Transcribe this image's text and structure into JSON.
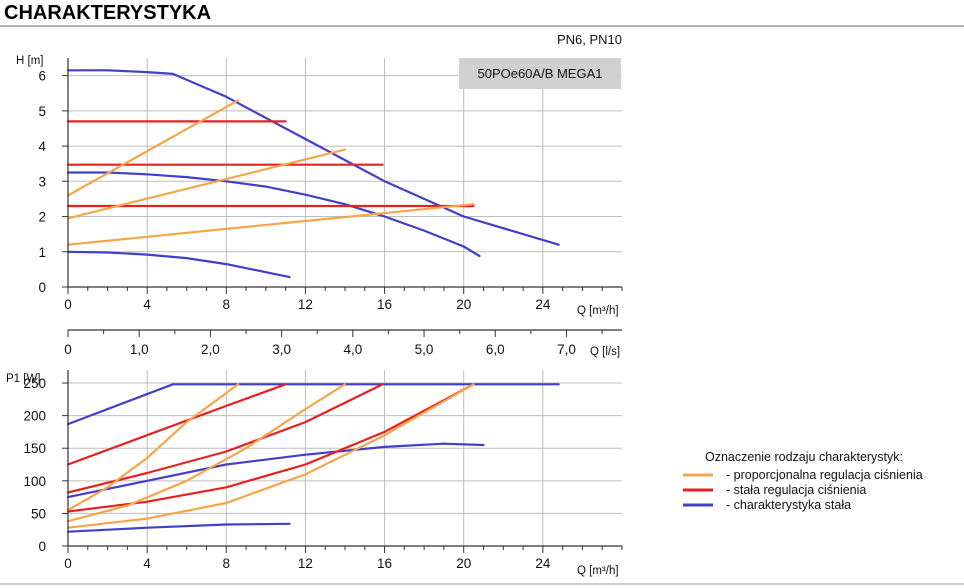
{
  "header": {
    "title": "CHARAKTERYSTYKA",
    "pressure_class": "PN6, PN10",
    "model": "50POe60A/B MEGA1"
  },
  "legend": {
    "title": "Oznaczenie rodzaju charakterystyk:",
    "items": [
      {
        "label": "- proporcjonalna regulacja ciśnienia",
        "color": "#f7a54a"
      },
      {
        "label": "- stała regulacja ciśnienia",
        "color": "#e8201f"
      },
      {
        "label": "- charakterystyka stała",
        "color": "#4040c8"
      }
    ]
  },
  "colors": {
    "proportional": "#f7a54a",
    "constant_pressure": "#e8201f",
    "fixed_curve": "#4040c8"
  },
  "chart_data": [
    {
      "id": "head",
      "type": "line",
      "ylabel": "H [m]",
      "xlabel": "Q [m³/h]",
      "xlim": [
        0,
        28
      ],
      "ylim": [
        0,
        6.5
      ],
      "xticks": [
        0,
        4,
        8,
        12,
        16,
        20,
        24
      ],
      "yticks": [
        0,
        1,
        2,
        3,
        4,
        5,
        6
      ],
      "grid": true,
      "series": [
        {
          "name": "charakterystyka stała max",
          "kind": "fixed",
          "x": [
            0,
            2,
            4,
            5.3,
            8,
            12,
            16,
            20,
            24.8
          ],
          "y": [
            6.15,
            6.15,
            6.1,
            6.05,
            5.4,
            4.2,
            3.0,
            2.0,
            1.2
          ]
        },
        {
          "name": "charakterystyka stała mid",
          "kind": "fixed",
          "x": [
            0,
            2,
            4,
            6,
            8,
            10,
            12,
            14,
            16,
            18,
            20,
            20.8
          ],
          "y": [
            3.25,
            3.25,
            3.2,
            3.12,
            3.0,
            2.85,
            2.62,
            2.35,
            2.0,
            1.6,
            1.15,
            0.88
          ]
        },
        {
          "name": "charakterystyka stała min",
          "kind": "fixed",
          "x": [
            0,
            2,
            4,
            6,
            8,
            10,
            11.2
          ],
          "y": [
            1.0,
            0.98,
            0.92,
            0.82,
            0.65,
            0.42,
            0.28
          ]
        },
        {
          "name": "stała regulacja 4.7 m",
          "kind": "constant",
          "x": [
            0,
            11
          ],
          "y": [
            4.7,
            4.7
          ]
        },
        {
          "name": "stała regulacja 3.5 m",
          "kind": "constant",
          "x": [
            0,
            15.9
          ],
          "y": [
            3.47,
            3.47
          ]
        },
        {
          "name": "stała regulacja 2.3 m",
          "kind": "constant",
          "x": [
            0,
            20.5
          ],
          "y": [
            2.3,
            2.3
          ]
        },
        {
          "name": "proporcjonalna 1",
          "kind": "proportional",
          "x": [
            0,
            8.6
          ],
          "y": [
            2.6,
            5.3
          ]
        },
        {
          "name": "proporcjonalna 2",
          "kind": "proportional",
          "x": [
            0,
            14
          ],
          "y": [
            1.95,
            3.9
          ]
        },
        {
          "name": "proporcjonalna 3",
          "kind": "proportional",
          "x": [
            0,
            20.5
          ],
          "y": [
            1.2,
            2.35
          ]
        }
      ]
    },
    {
      "id": "flow-ls",
      "type": "axis",
      "xlabel": "Q [l/s]",
      "xlim": [
        0,
        7.78
      ],
      "ticks": [
        0,
        1.0,
        2.0,
        3.0,
        4.0,
        5.0,
        6.0,
        7.0
      ],
      "tick_labels": [
        "0",
        "1,0",
        "2,0",
        "3,0",
        "4,0",
        "5,0",
        "6,0",
        "7,0"
      ]
    },
    {
      "id": "power",
      "type": "line",
      "ylabel": "P1 [W]",
      "xlabel": "Q [m³/h]",
      "xlim": [
        0,
        28
      ],
      "ylim": [
        0,
        270
      ],
      "xticks": [
        0,
        4,
        8,
        12,
        16,
        20,
        24
      ],
      "yticks": [
        0,
        50,
        100,
        150,
        200,
        250
      ],
      "grid": true,
      "series": [
        {
          "name": "max power line",
          "kind": "fixed",
          "x": [
            0,
            5.3,
            24.8
          ],
          "y": [
            187,
            248,
            248
          ]
        },
        {
          "name": "charakterystyka stała mid",
          "kind": "fixed",
          "x": [
            0,
            4,
            8,
            12,
            16,
            19,
            21
          ],
          "y": [
            75,
            100,
            125,
            140,
            152,
            157,
            155
          ]
        },
        {
          "name": "charakterystyka stała min",
          "kind": "fixed",
          "x": [
            0,
            4,
            8,
            11.2
          ],
          "y": [
            22,
            28,
            33,
            34
          ]
        },
        {
          "name": "stała regulacja 4.7 m",
          "kind": "constant",
          "x": [
            0,
            4,
            8,
            11
          ],
          "y": [
            125,
            170,
            215,
            248
          ]
        },
        {
          "name": "stała regulacja 3.5 m",
          "kind": "constant",
          "x": [
            0,
            4,
            8,
            12,
            15.9
          ],
          "y": [
            82,
            112,
            145,
            190,
            248
          ]
        },
        {
          "name": "stała regulacja 2.3 m",
          "kind": "constant",
          "x": [
            0,
            4,
            8,
            12,
            16,
            20.5
          ],
          "y": [
            53,
            68,
            90,
            125,
            175,
            248
          ]
        },
        {
          "name": "proporcjonalna 1",
          "kind": "proportional",
          "x": [
            0,
            2,
            4,
            6,
            8.6
          ],
          "y": [
            55,
            90,
            135,
            190,
            248
          ]
        },
        {
          "name": "proporcjonalna 2",
          "kind": "proportional",
          "x": [
            0,
            3,
            6,
            9,
            12,
            14
          ],
          "y": [
            38,
            62,
            100,
            150,
            210,
            248
          ]
        },
        {
          "name": "proporcjonalna 3",
          "kind": "proportional",
          "x": [
            0,
            4,
            8,
            12,
            16,
            20.5
          ],
          "y": [
            28,
            42,
            66,
            110,
            170,
            248
          ]
        }
      ]
    }
  ]
}
